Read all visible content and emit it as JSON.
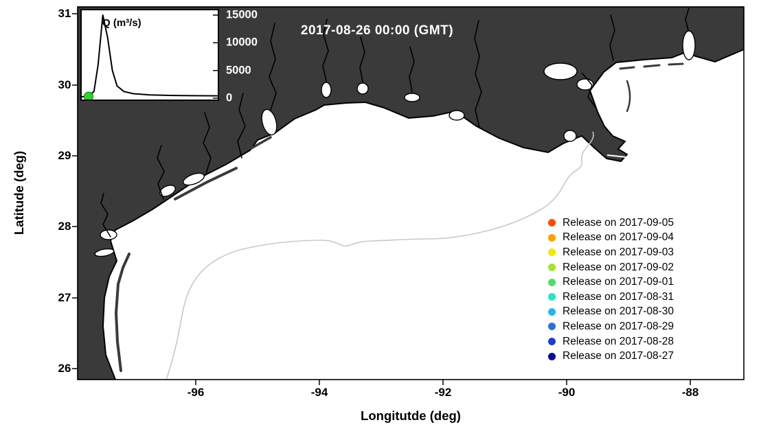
{
  "figure": {
    "title": "2017-08-26 00:00 (GMT)",
    "x_axis": {
      "label": "Longitutde (deg)",
      "ticks": [
        "-96",
        "-94",
        "-92",
        "-90",
        "-88"
      ]
    },
    "y_axis": {
      "label": "Latitude (deg)",
      "ticks": [
        "31",
        "30",
        "29",
        "28",
        "27",
        "26"
      ]
    }
  },
  "inset": {
    "label": "Q (m³/s)",
    "ticks": [
      "15000",
      "10000",
      "5000",
      "0"
    ]
  },
  "legend": {
    "items": [
      {
        "label": "Release on 2017-09-05",
        "color": "#ff4a00"
      },
      {
        "label": "Release on 2017-09-04",
        "color": "#ffa000"
      },
      {
        "label": "Release on 2017-09-03",
        "color": "#f2e800"
      },
      {
        "label": "Release on 2017-09-02",
        "color": "#a0e530"
      },
      {
        "label": "Release on 2017-09-01",
        "color": "#4cdf6a"
      },
      {
        "label": "Release on 2017-08-31",
        "color": "#2ae4c8"
      },
      {
        "label": "Release on 2017-08-30",
        "color": "#27b4ea"
      },
      {
        "label": "Release on 2017-08-29",
        "color": "#2b70e0"
      },
      {
        "label": "Release on 2017-08-28",
        "color": "#1f3ad0"
      },
      {
        "label": "Release on 2017-08-27",
        "color": "#0b0b9e"
      }
    ]
  },
  "chart_data": [
    {
      "id": "map",
      "type": "map",
      "title": "2017-08-26 00:00 (GMT)",
      "xlabel": "Longitutde (deg)",
      "ylabel": "Latitude (deg)",
      "xlim": [
        -97.9,
        -87.1
      ],
      "ylim": [
        25.85,
        31.1
      ],
      "x_ticks": [
        -96,
        -94,
        -92,
        -90,
        -88
      ],
      "y_ticks": [
        26,
        27,
        28,
        29,
        30,
        31
      ],
      "region": "Gulf of Mexico shelf along the Texas-Louisiana-Mississippi coast",
      "land_color": "#3a3a3a",
      "ocean_color": "#ffffff",
      "shelf_contour_color": "#c8c8c8",
      "visible_particles": 0,
      "grid": false,
      "legend_position": "center-right"
    },
    {
      "id": "inset",
      "type": "line",
      "title": "Q (m³/s)",
      "ylabel": "Q (m³/s)",
      "ylim": [
        0,
        15500
      ],
      "y_ticks": [
        0,
        5000,
        10000,
        15000
      ],
      "x_axis": "time (unlabeled)",
      "points": [
        [
          0.0,
          250
        ],
        [
          0.05,
          350
        ],
        [
          0.09,
          1200
        ],
        [
          0.12,
          6000
        ],
        [
          0.155,
          15000
        ],
        [
          0.19,
          11000
        ],
        [
          0.225,
          5000
        ],
        [
          0.26,
          2200
        ],
        [
          0.31,
          1200
        ],
        [
          0.38,
          800
        ],
        [
          0.5,
          600
        ],
        [
          0.65,
          500
        ],
        [
          0.82,
          450
        ],
        [
          1.0,
          420
        ]
      ],
      "marker": {
        "color": "#2ed32e",
        "x": 0.05,
        "q": 300
      }
    }
  ]
}
